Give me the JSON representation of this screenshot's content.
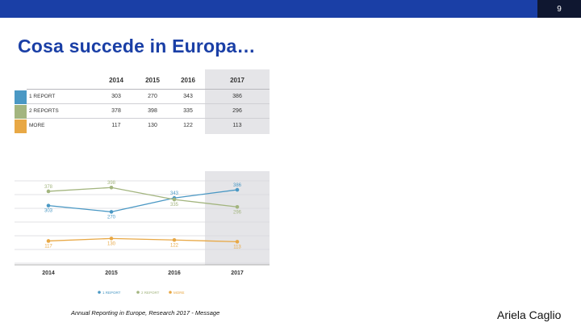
{
  "slide": {
    "page_number": "9",
    "title": "Cosa succede in Europa…",
    "source": "Annual Reporting in Europe, Research 2017 - Message",
    "author": "Ariela Caglio"
  },
  "table": {
    "headers": [
      "2014",
      "2015",
      "2016",
      "2017"
    ],
    "rows": [
      {
        "label": "1 REPORT",
        "color": "#4a98c4",
        "values": [
          "303",
          "270",
          "343",
          "386"
        ]
      },
      {
        "label": "2 REPORTS",
        "color": "#a3b57f",
        "values": [
          "378",
          "398",
          "335",
          "296"
        ]
      },
      {
        "label": "MORE",
        "color": "#e8a845",
        "values": [
          "117",
          "130",
          "122",
          "113"
        ]
      }
    ]
  },
  "chart_data": {
    "type": "line",
    "x": [
      "2014",
      "2015",
      "2016",
      "2017"
    ],
    "series": [
      {
        "name": "1 REPORT",
        "color": "#4a98c4",
        "values": [
          303,
          270,
          343,
          386
        ]
      },
      {
        "name": "2 REPORT",
        "color": "#a3b57f",
        "values": [
          378,
          398,
          335,
          296
        ]
      },
      {
        "name": "MORE",
        "color": "#e8a845",
        "values": [
          117,
          130,
          122,
          113
        ]
      }
    ],
    "highlight_category": "2017",
    "grid": true,
    "legend_position": "bottom-center",
    "ylim": [
      0,
      450
    ]
  }
}
